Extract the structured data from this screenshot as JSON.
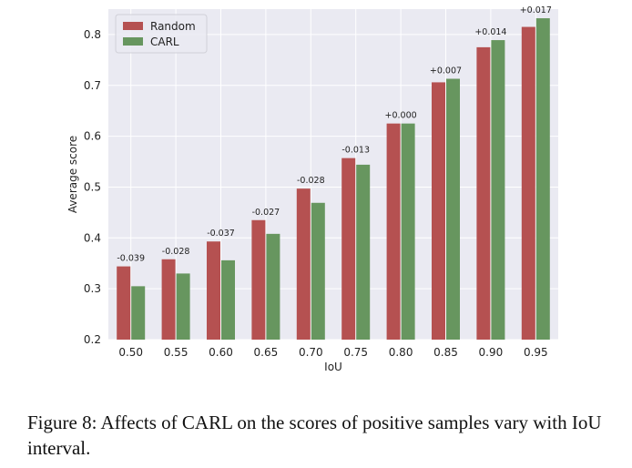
{
  "chart_data": {
    "type": "bar",
    "categories": [
      "0.50",
      "0.55",
      "0.60",
      "0.65",
      "0.70",
      "0.75",
      "0.80",
      "0.85",
      "0.90",
      "0.95"
    ],
    "series": [
      {
        "name": "Random",
        "color": "#b55151",
        "values": [
          0.344,
          0.358,
          0.393,
          0.435,
          0.497,
          0.557,
          0.625,
          0.706,
          0.775,
          0.815
        ]
      },
      {
        "name": "CARL",
        "color": "#67965f",
        "values": [
          0.305,
          0.33,
          0.356,
          0.408,
          0.469,
          0.544,
          0.625,
          0.713,
          0.789,
          0.832
        ]
      }
    ],
    "annotations": [
      "-0.039",
      "-0.028",
      "-0.037",
      "-0.027",
      "-0.028",
      "-0.013",
      "+0.000",
      "+0.007",
      "+0.014",
      "+0.017"
    ],
    "xlabel": "IoU",
    "ylabel": "Average score",
    "ylim": [
      0.2,
      0.85
    ],
    "yticks": [
      "0.2",
      "0.3",
      "0.4",
      "0.5",
      "0.6",
      "0.7",
      "0.8"
    ],
    "grid": true,
    "legend_position": "top-left",
    "background_color": "#eaeaf2"
  },
  "caption": "Figure 8: Affects of CARL on the scores of positive samples vary with IoU interval."
}
